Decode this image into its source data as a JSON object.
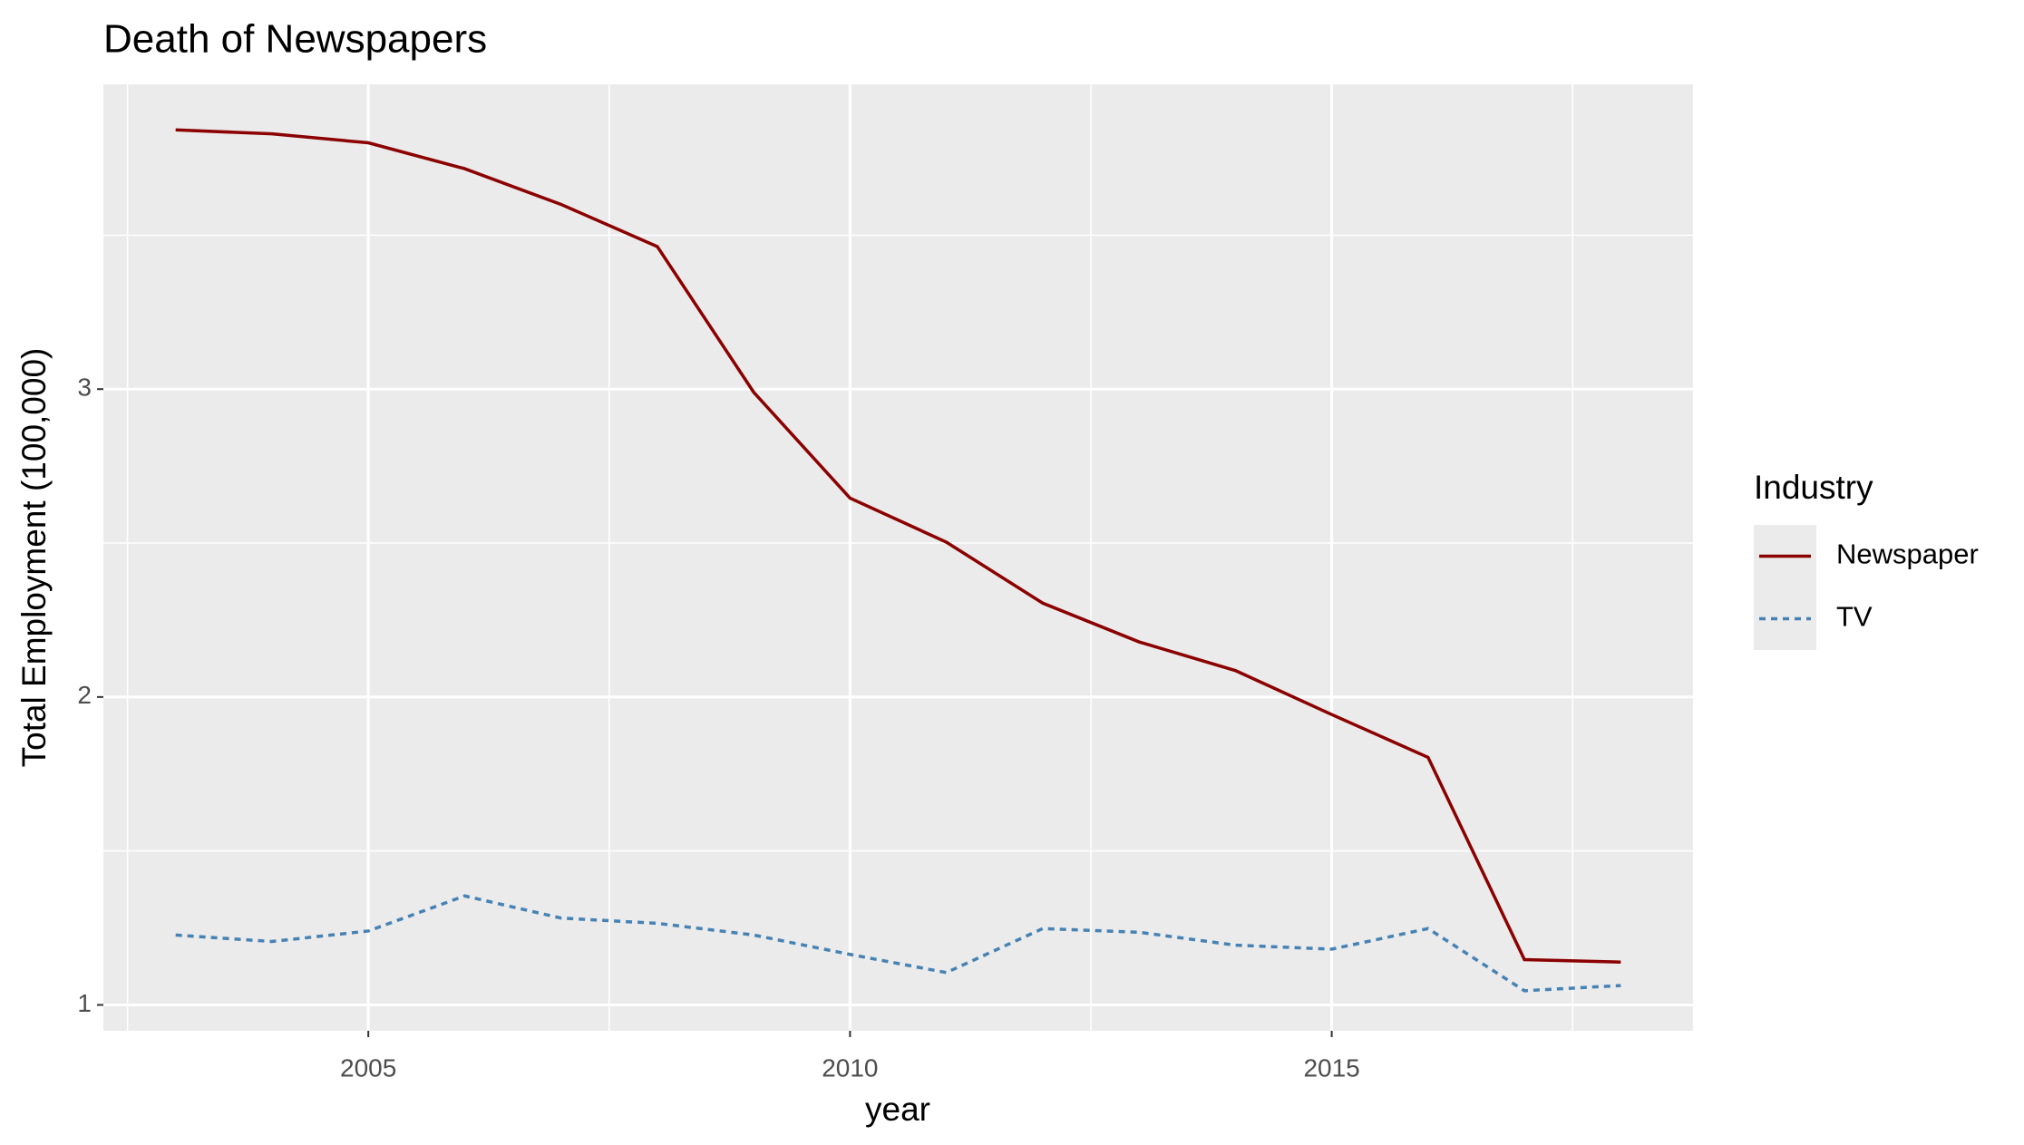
{
  "chart_data": {
    "type": "line",
    "title": "Death of Newspapers",
    "x_label": "year",
    "y_label": "Total Employment (100,000)",
    "legend_title": "Industry",
    "legend_position": "right",
    "x": [
      2003,
      2004,
      2005,
      2006,
      2007,
      2008,
      2009,
      2010,
      2011,
      2012,
      2013,
      2014,
      2015,
      2016,
      2017,
      2018
    ],
    "series": [
      {
        "name": "Newspaper",
        "color": "#8b0000",
        "dash": "solid",
        "values": [
          3.842,
          3.829,
          3.8,
          3.716,
          3.6,
          3.463,
          2.99,
          2.646,
          2.503,
          2.305,
          2.179,
          2.086,
          1.943,
          1.804,
          1.147,
          1.139
        ]
      },
      {
        "name": "TV",
        "color": "#4682b4",
        "dash": "dotted",
        "values": [
          1.227,
          1.206,
          1.24,
          1.354,
          1.282,
          1.265,
          1.227,
          1.164,
          1.105,
          1.248,
          1.236,
          1.194,
          1.181,
          1.248,
          1.046,
          1.063
        ]
      }
    ],
    "xlim": [
      2002.25,
      2018.75
    ],
    "xticks": [
      2005,
      2010,
      2015
    ],
    "ylim": [
      0.916,
      3.99
    ],
    "yticks": [
      1,
      2,
      3
    ],
    "grid": true
  }
}
